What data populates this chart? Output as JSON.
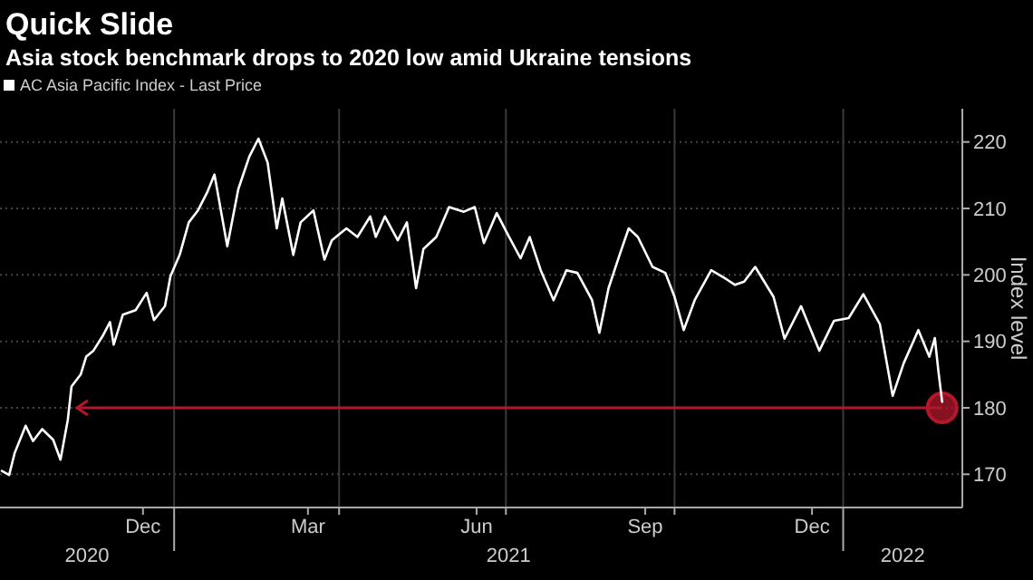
{
  "chart_data": {
    "type": "line",
    "title": "Quick Slide",
    "subtitle": "Asia stock benchmark drops to 2020 low amid Ukraine tensions",
    "ylabel": "Index level",
    "x": [
      "2020-09-29",
      "2020-10-03",
      "2020-10-06",
      "2020-10-12",
      "2020-10-16",
      "2020-10-21",
      "2020-10-27",
      "2020-10-31",
      "2020-11-04",
      "2020-11-06",
      "2020-11-11",
      "2020-11-14",
      "2020-11-18",
      "2020-11-23",
      "2020-11-27",
      "2020-11-29",
      "2020-12-04",
      "2020-12-11",
      "2020-12-17",
      "2020-12-21",
      "2020-12-27",
      "2020-12-30",
      "2021-01-04",
      "2021-01-09",
      "2021-01-14",
      "2021-01-19",
      "2021-01-23",
      "2021-01-30",
      "2021-02-05",
      "2021-02-11",
      "2021-02-16",
      "2021-02-21",
      "2021-02-26",
      "2021-03-01",
      "2021-03-07",
      "2021-03-11",
      "2021-03-18",
      "2021-03-24",
      "2021-03-28",
      "2021-04-05",
      "2021-04-11",
      "2021-04-18",
      "2021-04-21",
      "2021-04-26",
      "2021-05-03",
      "2021-05-08",
      "2021-05-13",
      "2021-05-17",
      "2021-05-24",
      "2021-05-31",
      "2021-06-08",
      "2021-06-14",
      "2021-06-19",
      "2021-06-26",
      "2021-07-02",
      "2021-07-09",
      "2021-07-14",
      "2021-07-20",
      "2021-07-27",
      "2021-08-03",
      "2021-08-09",
      "2021-08-17",
      "2021-08-21",
      "2021-08-26",
      "2021-09-01",
      "2021-09-06",
      "2021-09-11",
      "2021-09-19",
      "2021-09-26",
      "2021-10-01",
      "2021-10-06",
      "2021-10-12",
      "2021-10-21",
      "2021-10-29",
      "2021-11-03",
      "2021-11-08",
      "2021-11-14",
      "2021-11-24",
      "2021-11-30",
      "2021-12-09",
      "2021-12-19",
      "2021-12-27",
      "2022-01-04",
      "2022-01-12",
      "2022-01-21",
      "2022-01-28",
      "2022-02-03",
      "2022-02-11",
      "2022-02-17",
      "2022-02-20",
      "2022-02-22",
      "2022-02-24"
    ],
    "series": [
      {
        "name": "AC Asia Pacific Index - Last Price",
        "color": "#ffffff",
        "values": [
          170.5,
          169.9,
          173.2,
          177.3,
          175.0,
          176.8,
          175.2,
          172.2,
          178.2,
          183.2,
          185.0,
          187.7,
          188.6,
          190.8,
          192.9,
          189.5,
          194.0,
          194.7,
          197.3,
          193.2,
          195.3,
          199.8,
          203.0,
          207.9,
          209.7,
          212.4,
          215.1,
          204.3,
          212.9,
          217.8,
          220.5,
          216.9,
          207.0,
          211.5,
          203.0,
          207.9,
          209.7,
          202.3,
          205.2,
          207.0,
          205.7,
          208.8,
          205.7,
          208.8,
          205.2,
          207.9,
          198.0,
          203.9,
          205.7,
          210.2,
          209.5,
          210.2,
          204.8,
          209.3,
          206.1,
          202.5,
          205.7,
          200.7,
          196.2,
          200.7,
          200.3,
          196.2,
          191.3,
          198.0,
          203.0,
          207.0,
          205.7,
          201.2,
          200.3,
          196.7,
          191.7,
          196.2,
          200.7,
          199.4,
          198.5,
          199.0,
          201.2,
          196.7,
          190.4,
          195.3,
          188.6,
          193.1,
          193.5,
          197.1,
          192.6,
          181.8,
          186.7,
          191.7,
          187.7,
          190.5,
          185.4,
          180.9
        ]
      }
    ],
    "xlim": [
      "2020-09-28",
      "2022-03-07"
    ],
    "xticks": [
      {
        "value": "2020-12-15",
        "label": "Dec"
      },
      {
        "value": "2021-01-01",
        "label": null
      },
      {
        "value": "2021-03-15",
        "label": "Mar"
      },
      {
        "value": "2021-04-01",
        "label": null
      },
      {
        "value": "2021-06-15",
        "label": "Jun"
      },
      {
        "value": "2021-07-01",
        "label": null
      },
      {
        "value": "2021-09-15",
        "label": "Sep"
      },
      {
        "value": "2021-10-01",
        "label": null
      },
      {
        "value": "2021-12-15",
        "label": "Dec"
      },
      {
        "value": "2022-01-01",
        "label": null
      }
    ],
    "ylim": [
      165,
      225
    ],
    "yticks": [
      170,
      180,
      190,
      200,
      210,
      220
    ],
    "ref_lines": [
      {
        "axis": "y",
        "value": 180,
        "color": "#b3172c"
      }
    ],
    "annotations": [
      "2020",
      "2021",
      "2022"
    ],
    "grid": true,
    "legend": "top left",
    "marker": "none",
    "line_style": "solid"
  }
}
